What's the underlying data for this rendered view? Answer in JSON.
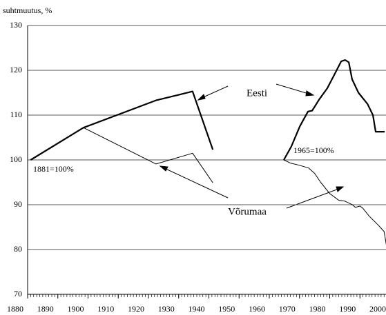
{
  "chart_data": {
    "type": "line",
    "y_label": "suhtmuutus, %",
    "xlim": [
      1880,
      2000
    ],
    "xticks": [
      1880,
      1890,
      1900,
      1910,
      1920,
      1930,
      1940,
      1950,
      1960,
      1970,
      1980,
      1990,
      2000
    ],
    "ylim": [
      70,
      130
    ],
    "yticks": [
      70,
      80,
      90,
      100,
      110,
      120,
      130
    ],
    "grid": true,
    "series": [
      {
        "name": "Eesti",
        "color": "#000000",
        "width": 2.2,
        "x": [
          1881,
          1898.5,
          1922.5,
          1934.6,
          1941.3,
          null,
          1964.8,
          1967.3,
          1970.1,
          1972.8,
          1974.2,
          1976.5,
          1979.2,
          1981.9,
          1983.8,
          1985.1,
          1986.3,
          1987.4,
          1989.5,
          1992.5,
          1994.3,
          1995.2,
          1998.2
        ],
        "values": [
          100,
          107.2,
          113.3,
          115.3,
          102.3,
          null,
          100,
          103,
          107.5,
          110.8,
          111,
          113.5,
          116,
          119.5,
          122,
          122.3,
          121.8,
          118,
          115,
          112.5,
          110,
          106.3,
          106.3
        ]
      },
      {
        "name": "Võrumaa",
        "color": "#000000",
        "width": 1,
        "x": [
          1881,
          1898.5,
          1922.5,
          1934.6,
          1941.3,
          null,
          1964.8,
          1967,
          1970,
          1973,
          1975,
          1977,
          1980,
          1983,
          1985,
          1987.5,
          1988.5,
          1990,
          1991,
          1993,
          1996,
          1998,
          1999
        ],
        "values": [
          100,
          107.2,
          99.1,
          101.5,
          94.9,
          null,
          100,
          99.3,
          98.8,
          98.2,
          97,
          95,
          92.5,
          91,
          90.8,
          90,
          89.4,
          89.7,
          89.2,
          87.5,
          85.5,
          84,
          80
        ]
      }
    ],
    "annotations": [
      "Eesti",
      "Võrumaa",
      "1881=100%",
      "1965=100%"
    ]
  }
}
